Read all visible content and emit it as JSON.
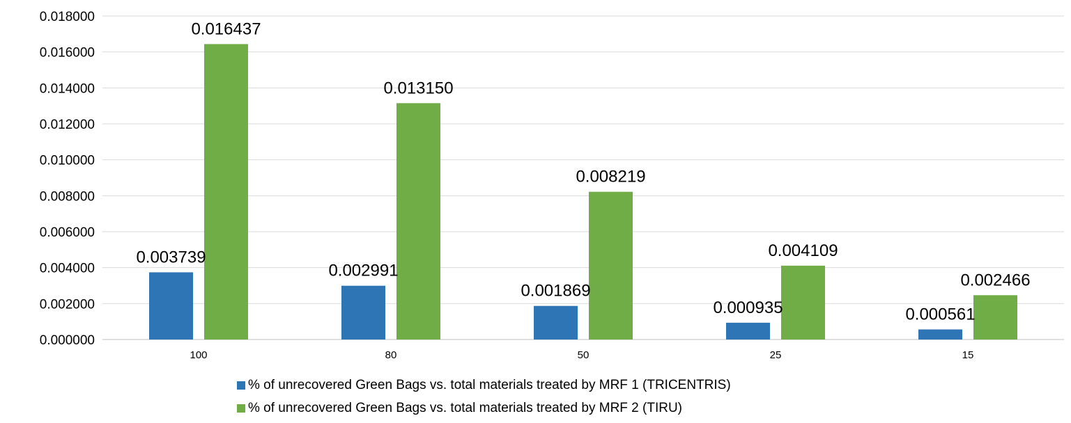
{
  "chart_data": {
    "type": "bar",
    "categories": [
      "100",
      "80",
      "50",
      "25",
      "15"
    ],
    "series": [
      {
        "name": "% of unrecovered Green Bags vs. total materials treated by MRF 1 (TRICENTRIS)",
        "color": "#2E75B6",
        "values": [
          0.003739,
          0.002991,
          0.001869,
          0.000935,
          0.000561
        ],
        "labels": [
          "0.003739",
          "0.002991",
          "0.001869",
          "0.000935",
          "0.000561"
        ]
      },
      {
        "name": "% of unrecovered Green Bags vs. total materials treated by MRF 2 (TIRU)",
        "color": "#70AD47",
        "values": [
          0.016437,
          0.01315,
          0.008219,
          0.004109,
          0.002466
        ],
        "labels": [
          "0.016437",
          "0.013150",
          "0.008219",
          "0.004109",
          "0.002466"
        ]
      }
    ],
    "ylim": [
      0,
      0.018
    ],
    "yticks": [
      "0.000000",
      "0.002000",
      "0.004000",
      "0.006000",
      "0.008000",
      "0.010000",
      "0.012000",
      "0.014000",
      "0.016000",
      "0.018000"
    ],
    "grid": true,
    "legend_position": "bottom",
    "title": "",
    "xlabel": "",
    "ylabel": ""
  }
}
